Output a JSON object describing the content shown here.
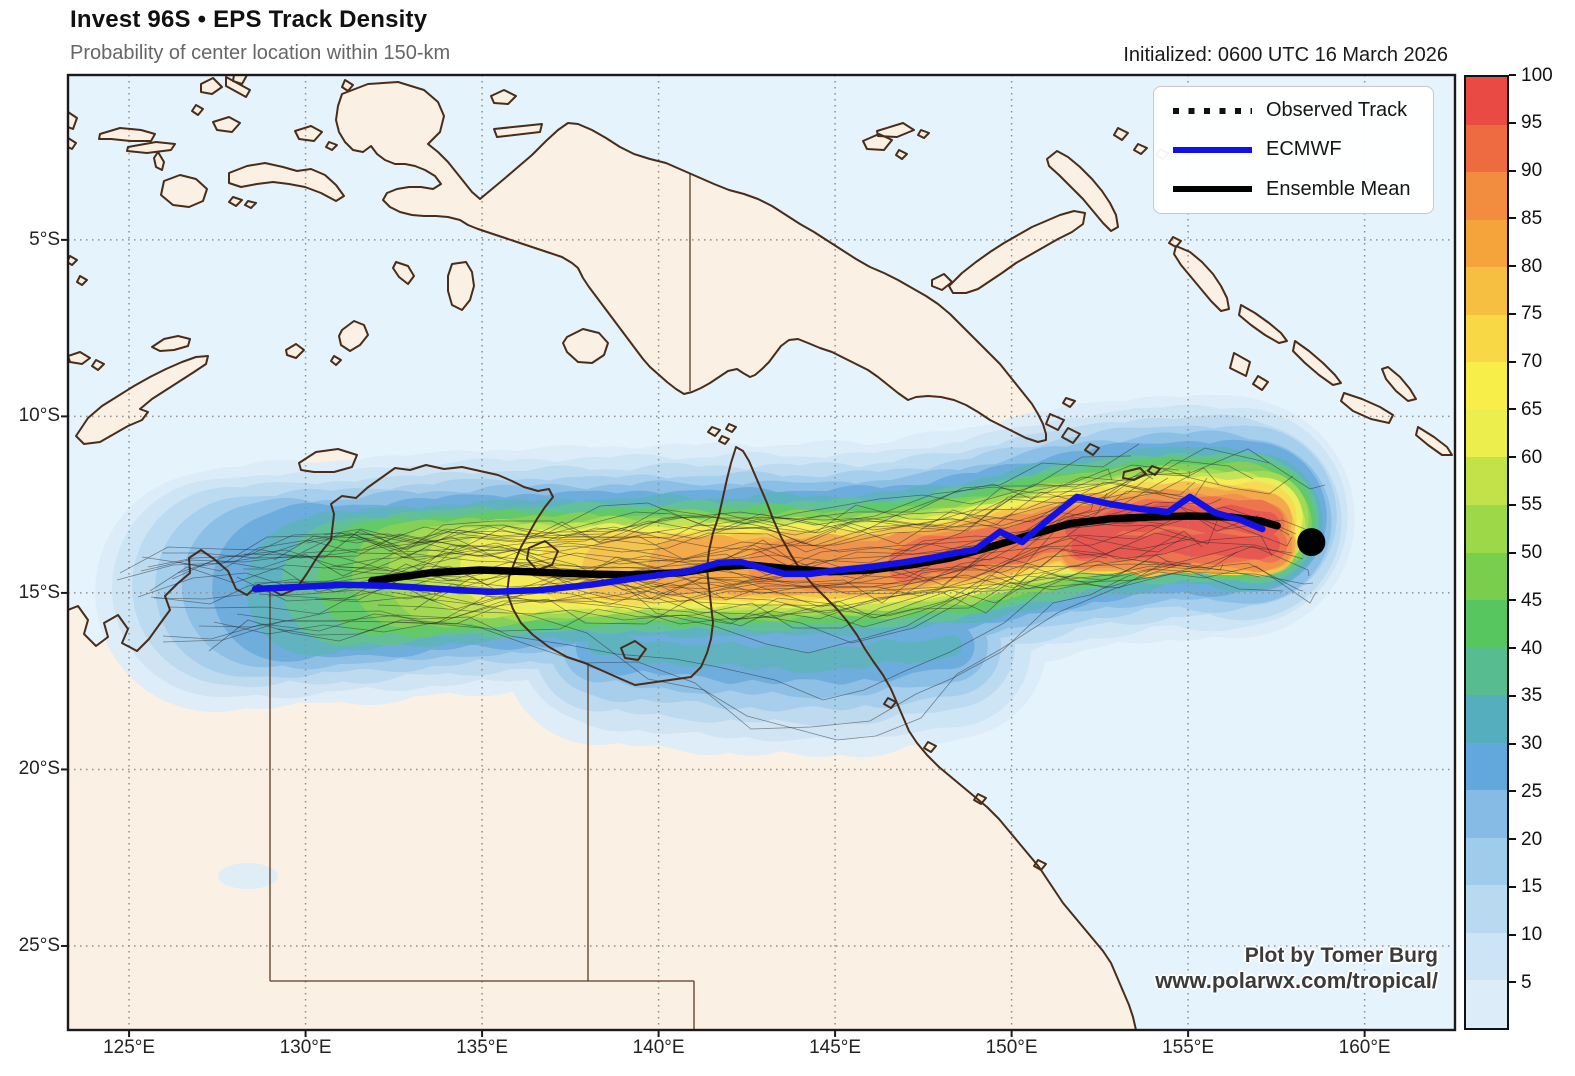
{
  "header": {
    "title": "Invest 96S • EPS Track Density",
    "subtitle": "Probability of center location within 150-km",
    "initialized": "Initialized: 0600 UTC 16 March 2026"
  },
  "legend": {
    "items": [
      {
        "label": "Observed Track",
        "style": "dotted",
        "color": "#111111"
      },
      {
        "label": "ECMWF",
        "style": "solid",
        "color": "#1212e6"
      },
      {
        "label": "Ensemble Mean",
        "style": "solid",
        "color": "#000000"
      }
    ]
  },
  "attribution": {
    "line1": "Plot by Tomer Burg",
    "line2": "www.polarwx.com/tropical/"
  },
  "colorbar": {
    "ticks": [
      5,
      10,
      15,
      20,
      25,
      30,
      35,
      40,
      45,
      50,
      55,
      60,
      65,
      70,
      75,
      80,
      85,
      90,
      95,
      100
    ],
    "colors": [
      "#dcedf9",
      "#cde4f6",
      "#b9d9f1",
      "#a0ccec",
      "#85bbe5",
      "#63a8dc",
      "#54aebd",
      "#57bd90",
      "#58c65f",
      "#7ace4d",
      "#9cd847",
      "#c3e24a",
      "#ebee4d",
      "#f8ee4a",
      "#f8d945",
      "#f7bf41",
      "#f5a43c",
      "#f28c3f",
      "#ee6a41",
      "#e94b44"
    ]
  },
  "chart_data": {
    "type": "map-track-density",
    "title": "Invest 96S • EPS Track Density",
    "units": "probability (%) of center location within 150 km",
    "projection": {
      "lon_range": [
        123.27,
        162.56
      ],
      "lat_range": [
        -27.38,
        -0.33
      ]
    },
    "x_axis": {
      "ticks": [
        {
          "lon": 125,
          "label": "125°E"
        },
        {
          "lon": 130,
          "label": "130°E"
        },
        {
          "lon": 135,
          "label": "135°E"
        },
        {
          "lon": 140,
          "label": "140°E"
        },
        {
          "lon": 145,
          "label": "145°E"
        },
        {
          "lon": 150,
          "label": "150°E"
        },
        {
          "lon": 155,
          "label": "155°E"
        },
        {
          "lon": 160,
          "label": "160°E"
        }
      ]
    },
    "y_axis": {
      "ticks": [
        {
          "lat": -5,
          "label": "5°S"
        },
        {
          "lat": -10,
          "label": "10°S"
        },
        {
          "lat": -15,
          "label": "15°S"
        },
        {
          "lat": -20,
          "label": "20°S"
        },
        {
          "lat": -25,
          "label": "25°S"
        }
      ]
    },
    "density": {
      "spine": [
        [
          124.46,
          -15.2
        ],
        [
          126.44,
          -14.97
        ],
        [
          128.99,
          -14.77
        ],
        [
          131.83,
          -14.63
        ],
        [
          134.66,
          -14.4
        ],
        [
          137.49,
          -14.32
        ],
        [
          140.32,
          -14.26
        ],
        [
          143.16,
          -14.23
        ],
        [
          145.99,
          -14.21
        ],
        [
          148.82,
          -13.84
        ],
        [
          151.65,
          -13.19
        ],
        [
          154.48,
          -12.82
        ],
        [
          156.75,
          -12.9
        ],
        [
          158.32,
          -13.39
        ]
      ],
      "levels": [
        [
          5,
          127.44,
          156.32,
          6.8
        ],
        [
          10,
          127.61,
          156.43,
          6.18
        ],
        [
          15,
          127.89,
          156.54,
          5.61
        ],
        [
          20,
          128.29,
          156.66,
          5.1
        ],
        [
          25,
          128.82,
          156.74,
          4.65
        ],
        [
          30,
          129.48,
          156.8,
          4.25
        ],
        [
          35,
          130.25,
          156.87,
          3.88
        ],
        [
          40,
          131.1,
          156.93,
          3.54
        ],
        [
          45,
          131.97,
          156.97,
          3.23
        ],
        [
          50,
          132.79,
          157.03,
          2.95
        ],
        [
          55,
          133.68,
          157.07,
          2.69
        ],
        [
          60,
          134.59,
          157.1,
          2.46
        ],
        [
          65,
          135.51,
          157.11,
          2.27
        ],
        [
          70,
          136.5,
          157.11,
          2.1
        ],
        [
          75,
          137.55,
          157.11,
          1.93
        ],
        [
          80,
          138.71,
          157.14,
          1.76
        ],
        [
          85,
          140.48,
          157.16,
          1.56
        ],
        [
          90,
          143.2,
          157.18,
          1.33
        ],
        [
          95,
          147.02,
          157.21,
          1.05
        ],
        [
          100,
          151.85,
          157.25,
          0.68
        ]
      ],
      "bulge": {
        "path": [
          [
            138.3,
            -16.5
          ],
          [
            141.7,
            -16.8
          ],
          [
            145.1,
            -16.9
          ],
          [
            148.3,
            -16.5
          ]
        ],
        "levels": [
          [
            5,
            5.4
          ],
          [
            10,
            4.5
          ],
          [
            15,
            3.6
          ],
          [
            20,
            2.8
          ],
          [
            25,
            2.05
          ],
          [
            30,
            1.3
          ],
          [
            35,
            0.6
          ]
        ]
      },
      "core": {
        "path": [
          [
            152.0,
            -13.64
          ],
          [
            154.8,
            -13.64
          ],
          [
            157.3,
            -13.64
          ]
        ],
        "levels": [
          [
            75,
            1.55
          ],
          [
            80,
            1.55
          ],
          [
            85,
            1.47
          ],
          [
            90,
            1.3
          ],
          [
            95,
            1.02
          ],
          [
            100,
            0.62
          ]
        ]
      }
    },
    "tracks": {
      "ensemble_mean": [
        [
          131.88,
          -14.66
        ],
        [
          133.53,
          -14.43
        ],
        [
          134.94,
          -14.35
        ],
        [
          136.36,
          -14.4
        ],
        [
          137.78,
          -14.46
        ],
        [
          139.19,
          -14.49
        ],
        [
          140.61,
          -14.43
        ],
        [
          141.74,
          -14.26
        ],
        [
          142.59,
          -14.21
        ],
        [
          143.72,
          -14.32
        ],
        [
          144.86,
          -14.4
        ],
        [
          145.99,
          -14.35
        ],
        [
          147.12,
          -14.21
        ],
        [
          148.26,
          -14.01
        ],
        [
          149.39,
          -13.7
        ],
        [
          150.52,
          -13.36
        ],
        [
          151.65,
          -13.04
        ],
        [
          152.79,
          -12.9
        ],
        [
          153.92,
          -12.85
        ],
        [
          155.05,
          -12.82
        ],
        [
          156.19,
          -12.85
        ],
        [
          157.04,
          -12.96
        ],
        [
          157.52,
          -13.1
        ]
      ],
      "ecmwf": [
        [
          128.57,
          -14.89
        ],
        [
          129.84,
          -14.83
        ],
        [
          131.12,
          -14.77
        ],
        [
          132.39,
          -14.8
        ],
        [
          133.81,
          -14.89
        ],
        [
          135.23,
          -14.97
        ],
        [
          136.64,
          -14.92
        ],
        [
          138.06,
          -14.77
        ],
        [
          139.47,
          -14.57
        ],
        [
          140.89,
          -14.38
        ],
        [
          141.68,
          -14.15
        ],
        [
          142.31,
          -14.12
        ],
        [
          142.93,
          -14.29
        ],
        [
          143.58,
          -14.46
        ],
        [
          144.29,
          -14.46
        ],
        [
          145.14,
          -14.35
        ],
        [
          145.99,
          -14.26
        ],
        [
          146.84,
          -14.15
        ],
        [
          147.69,
          -14.01
        ],
        [
          148.4,
          -13.87
        ],
        [
          148.96,
          -13.78
        ],
        [
          149.67,
          -13.27
        ],
        [
          150.3,
          -13.56
        ],
        [
          151.03,
          -12.93
        ],
        [
          151.85,
          -12.28
        ],
        [
          152.79,
          -12.48
        ],
        [
          153.64,
          -12.62
        ],
        [
          154.43,
          -12.71
        ],
        [
          155.05,
          -12.28
        ],
        [
          155.76,
          -12.73
        ],
        [
          156.47,
          -12.93
        ],
        [
          157.1,
          -13.19
        ]
      ],
      "genesis_point": {
        "lon": 158.49,
        "lat": -13.56
      }
    },
    "members": {
      "count": 46,
      "seed": 11
    }
  }
}
